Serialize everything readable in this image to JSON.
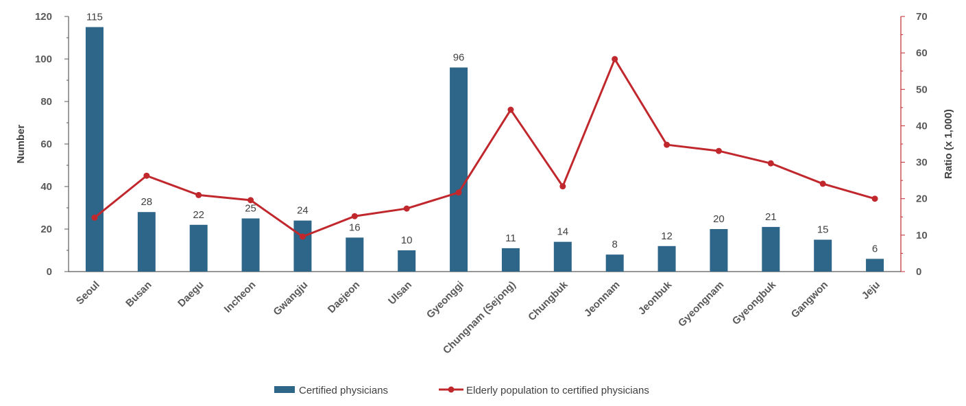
{
  "chart_data": {
    "type": "bar+line",
    "categories": [
      "Seoul",
      "Busan",
      "Daegu",
      "Incheon",
      "Gwangju",
      "Daejeon",
      "Ulsan",
      "Gyeonggi",
      "Chungnam (Sejong)",
      "Chungbuk",
      "Jeonnam",
      "Jeonbuk",
      "Gyeongnam",
      "Gyeongbuk",
      "Gangwon",
      "Jeju"
    ],
    "series": [
      {
        "name": "Certified physicians",
        "type": "bar",
        "axis": "left",
        "color": "#2e6689",
        "values": [
          115,
          28,
          22,
          25,
          24,
          16,
          10,
          96,
          11,
          14,
          8,
          12,
          20,
          21,
          15,
          6
        ],
        "labels": [
          "115",
          "28",
          "22",
          "25",
          "24",
          "16",
          "10",
          "96",
          "11",
          "14",
          "8",
          "12",
          "20",
          "21",
          "15",
          "6"
        ]
      },
      {
        "name": "Elderly population to certified physicians",
        "type": "line",
        "axis": "right",
        "color": "#c0282d",
        "values": [
          14.8,
          26.3,
          21.0,
          19.6,
          9.6,
          15.2,
          17.3,
          21.7,
          44.4,
          23.4,
          58.3,
          34.8,
          33.1,
          29.7,
          24.1,
          20.0
        ]
      }
    ],
    "ylabel": "Number",
    "y2label": "Ratio (x 1,000)",
    "ylim": [
      0,
      120
    ],
    "y2lim": [
      0,
      70
    ],
    "yticks": [
      "0",
      "20",
      "40",
      "60",
      "80",
      "100",
      "120"
    ],
    "y2ticks": [
      "0",
      "10",
      "20",
      "30",
      "40",
      "50",
      "60",
      "70"
    ],
    "legend": {
      "position": "bottom-center",
      "items": [
        "Certified physicians",
        "Elderly population to certified physicians"
      ]
    }
  }
}
